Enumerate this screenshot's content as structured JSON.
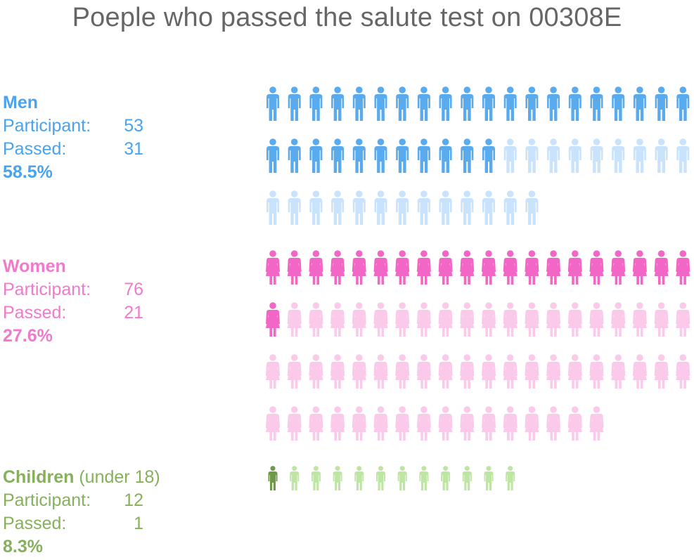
{
  "title": "Poeple who passed the salute test on 00308E",
  "chart_data": {
    "type": "pictograph",
    "title": "Poeple who passed the salute test on 00308E",
    "icons_per_row": 20,
    "groups": [
      {
        "name": "Men",
        "suffix": "",
        "participant_label": "Participant:",
        "participant": 53,
        "passed_label": "Passed:",
        "passed": 31,
        "percent": "58.5%",
        "icon": "man-icon",
        "color_passed": "#5aabee",
        "color_failed": "#c8e3fb",
        "color_text": "#4aa3ee"
      },
      {
        "name": "Women",
        "suffix": "",
        "participant_label": "Participant:",
        "participant": 76,
        "passed_label": "Passed:",
        "passed": 21,
        "percent": "27.6%",
        "icon": "woman-icon",
        "color_passed": "#f266c6",
        "color_failed": "#fbc9e9",
        "color_text": "#f07acb"
      },
      {
        "name": "Children",
        "suffix": "(under 18)",
        "participant_label": "Participant:",
        "participant": 12,
        "passed_label": "Passed:",
        "passed": 1,
        "percent": "8.3%",
        "icon": "child-icon",
        "color_passed": "#6e9a47",
        "color_failed": "#bfe5a4",
        "color_text": "#86b05c"
      }
    ]
  }
}
